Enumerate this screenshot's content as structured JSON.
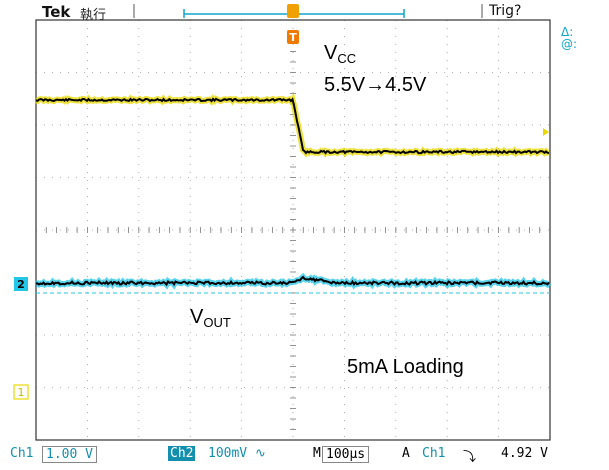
{
  "header": {
    "brand": "Tek",
    "brand_sub": "執行",
    "trigger_status": "Trig?",
    "delta_label": "Δ:",
    "at_label": "@:"
  },
  "markers": {
    "ch2": "2",
    "ch1": "1",
    "trigger_t": "T"
  },
  "annotations": {
    "vcc_main": "V",
    "vcc_sub": "CC",
    "vcc_transition": "5.5V→4.5V",
    "vout_main": "V",
    "vout_sub": "OUT",
    "loading": "5mA Loading"
  },
  "status": {
    "ch1_label": "Ch1",
    "ch1_scale": "1.00 V",
    "ch2_label": "Ch2",
    "ch2_scale": "100mV ∿",
    "time_label": "M",
    "time_scale": "100µs",
    "acq_label": "A",
    "trig_source": "Ch1",
    "trig_slope": "⤵",
    "trig_level": "4.92 V"
  },
  "colors": {
    "ch1": "#e8d800",
    "ch2": "#23c6e6",
    "trigger": "#f08a00",
    "status_text": "#138fae",
    "trace": "#000000"
  },
  "chart_data": {
    "type": "line",
    "x_divisions": 10,
    "y_divisions": 8,
    "series": [
      {
        "name": "Ch1",
        "x": [
          -5,
          0,
          0.2,
          5
        ],
        "y": [
          5.5,
          5.5,
          4.5,
          4.5
        ]
      },
      {
        "name": "Ch2",
        "x": [
          -5,
          0,
          0.2,
          0.8,
          5
        ],
        "y": [
          0,
          0,
          0.01,
          0,
          0
        ]
      }
    ]
  }
}
